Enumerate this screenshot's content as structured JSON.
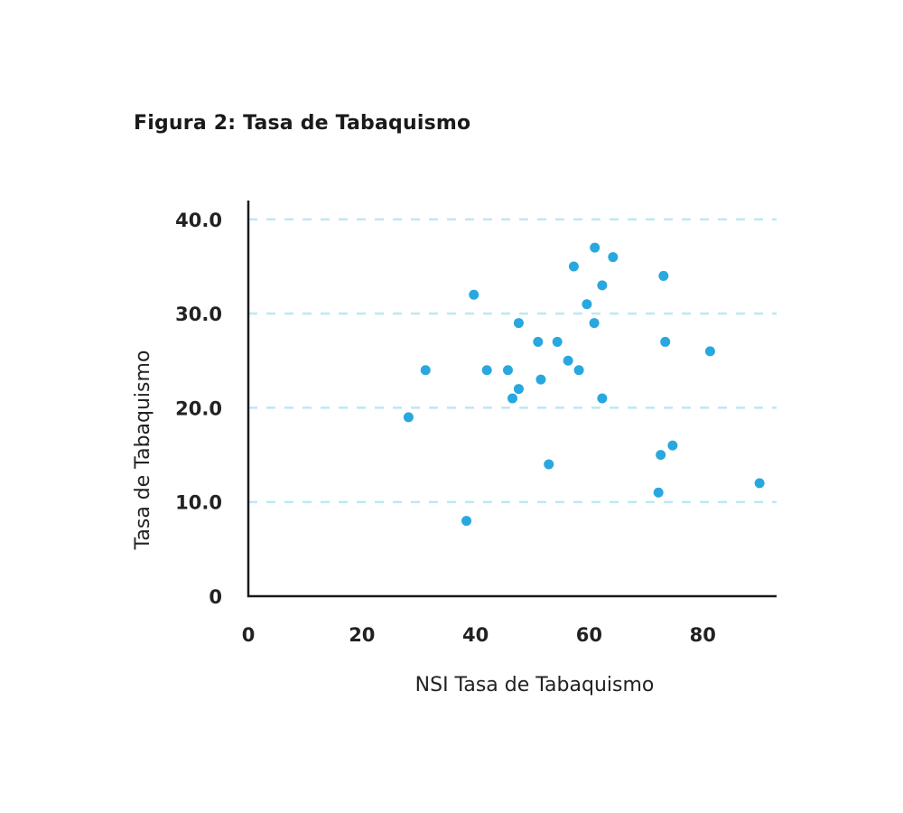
{
  "chart_data": {
    "type": "scatter",
    "title": "Figura 2: Tasa de Tabaquismo",
    "xlabel": "NSI Tasa de Tabaquismo",
    "ylabel": "Tasa de Tabaquismo",
    "xlim": [
      0,
      93
    ],
    "ylim": [
      0,
      42
    ],
    "xticks": [
      0,
      20,
      40,
      60,
      80
    ],
    "xtick_labels": [
      "0",
      "20",
      "40",
      "60",
      "80"
    ],
    "yticks": [
      0,
      10,
      20,
      30,
      40
    ],
    "ytick_labels": [
      "0",
      "10.0",
      "20.0",
      "30.0",
      "40.0"
    ],
    "grid": "horizontal dashed",
    "colors": {
      "point": "#29a8e0",
      "grid": "#bde8f5",
      "axis": "#1a1a1a"
    },
    "series": [
      {
        "points": [
          [
            28.2,
            19
          ],
          [
            31.2,
            24
          ],
          [
            38.4,
            8
          ],
          [
            39.7,
            32
          ],
          [
            42.0,
            24
          ],
          [
            45.7,
            24
          ],
          [
            46.5,
            21
          ],
          [
            47.6,
            29
          ],
          [
            47.6,
            22
          ],
          [
            51.0,
            27
          ],
          [
            51.5,
            23
          ],
          [
            52.9,
            14
          ],
          [
            54.4,
            27
          ],
          [
            56.3,
            25
          ],
          [
            57.3,
            35
          ],
          [
            58.2,
            24
          ],
          [
            59.6,
            31
          ],
          [
            61.0,
            37
          ],
          [
            60.9,
            29
          ],
          [
            62.3,
            33
          ],
          [
            62.3,
            21
          ],
          [
            64.2,
            36
          ],
          [
            72.2,
            11
          ],
          [
            72.6,
            15
          ],
          [
            73.1,
            34
          ],
          [
            73.4,
            27
          ],
          [
            74.7,
            16
          ],
          [
            81.3,
            26
          ],
          [
            90.0,
            12
          ]
        ]
      }
    ]
  }
}
